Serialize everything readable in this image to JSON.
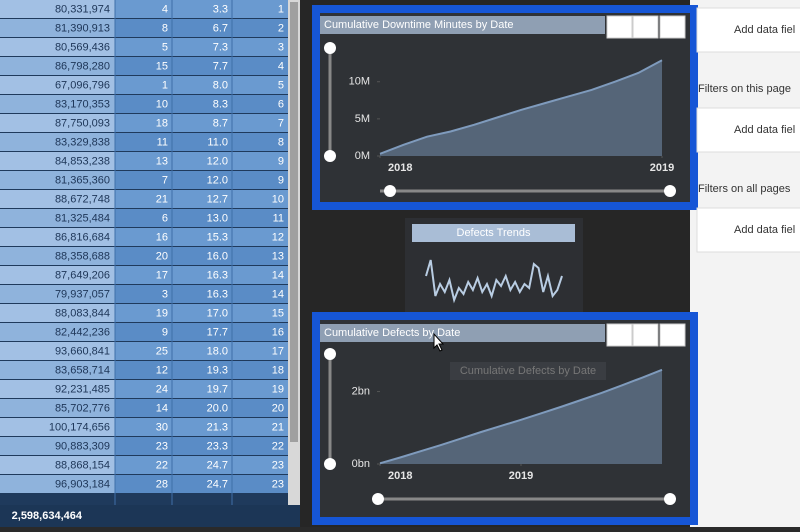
{
  "table": {
    "rows": [
      [
        "80,331,974",
        "4",
        "3.3",
        "1"
      ],
      [
        "81,390,913",
        "8",
        "6.7",
        "2"
      ],
      [
        "80,569,436",
        "5",
        "7.3",
        "3"
      ],
      [
        "86,798,280",
        "15",
        "7.7",
        "4"
      ],
      [
        "67,096,796",
        "1",
        "8.0",
        "5"
      ],
      [
        "83,170,353",
        "10",
        "8.3",
        "6"
      ],
      [
        "87,750,093",
        "18",
        "8.7",
        "7"
      ],
      [
        "83,329,838",
        "11",
        "11.0",
        "8"
      ],
      [
        "84,853,238",
        "13",
        "12.0",
        "9"
      ],
      [
        "81,365,360",
        "7",
        "12.0",
        "9"
      ],
      [
        "88,672,748",
        "21",
        "12.7",
        "10"
      ],
      [
        "81,325,484",
        "6",
        "13.0",
        "11"
      ],
      [
        "86,816,684",
        "16",
        "15.3",
        "12"
      ],
      [
        "88,358,688",
        "20",
        "16.0",
        "13"
      ],
      [
        "87,649,206",
        "17",
        "16.3",
        "14"
      ],
      [
        "79,937,057",
        "3",
        "16.3",
        "14"
      ],
      [
        "88,083,844",
        "19",
        "17.0",
        "15"
      ],
      [
        "82,442,236",
        "9",
        "17.7",
        "16"
      ],
      [
        "93,660,841",
        "25",
        "18.0",
        "17"
      ],
      [
        "83,658,714",
        "12",
        "19.3",
        "18"
      ],
      [
        "92,231,485",
        "24",
        "19.7",
        "19"
      ],
      [
        "85,702,776",
        "14",
        "20.0",
        "20"
      ],
      [
        "100,174,656",
        "30",
        "21.3",
        "21"
      ],
      [
        "90,883,309",
        "23",
        "23.3",
        "22"
      ],
      [
        "88,868,154",
        "22",
        "24.7",
        "23"
      ],
      [
        "96,903,184",
        "28",
        "24.7",
        "23"
      ]
    ],
    "total": "2,598,634,464"
  },
  "chart_data": [
    {
      "type": "area",
      "title": "Cumulative Downtime Minutes by Date",
      "color": "#7f9bbd",
      "values": [
        300000,
        1500000,
        2600000,
        3300000,
        4200000,
        5200000,
        6200000,
        7100000,
        8000000,
        8900000,
        10000000,
        11200000,
        12900000
      ],
      "ylim": [
        0,
        13600000
      ],
      "yticks": [
        {
          "value": 0,
          "label": "0M"
        },
        {
          "value": 5000000,
          "label": "5M"
        },
        {
          "value": 10000000,
          "label": "10M"
        }
      ],
      "xticks": [
        {
          "value": 0,
          "label": "2018"
        },
        {
          "value": 12,
          "label": "2019"
        }
      ]
    },
    {
      "type": "line",
      "title": "Defects Trends",
      "color": "#b9cde3",
      "values": [
        22,
        30,
        12,
        18,
        14,
        20,
        10,
        16,
        13,
        19,
        15,
        21,
        14,
        18,
        12,
        20,
        17,
        22,
        15,
        19,
        14,
        18,
        16,
        28,
        26,
        14,
        22,
        12,
        15,
        22
      ]
    },
    {
      "type": "area",
      "title": "Cumulative Defects by Date",
      "color": "#7f9bbd",
      "values": [
        20000000,
        180000000,
        350000000,
        520000000,
        700000000,
        880000000,
        1050000000,
        1220000000,
        1400000000,
        1580000000,
        1770000000,
        1960000000,
        2170000000,
        2380000000,
        2600000000
      ],
      "ylim": [
        0,
        2650000000
      ],
      "yticks": [
        {
          "value": 0,
          "label": "0bn"
        },
        {
          "value": 2000000000,
          "label": "2bn"
        }
      ],
      "xticks": [
        {
          "value": 0,
          "label": "2018"
        },
        {
          "value": 7,
          "label": "2019"
        }
      ]
    }
  ],
  "tooltip": "Cumulative Defects by Date",
  "filters_pane": {
    "items": [
      "Add data fiel",
      "Filters on this page",
      "Add data fiel",
      "Filters on all pages",
      "Add data fiel"
    ]
  }
}
